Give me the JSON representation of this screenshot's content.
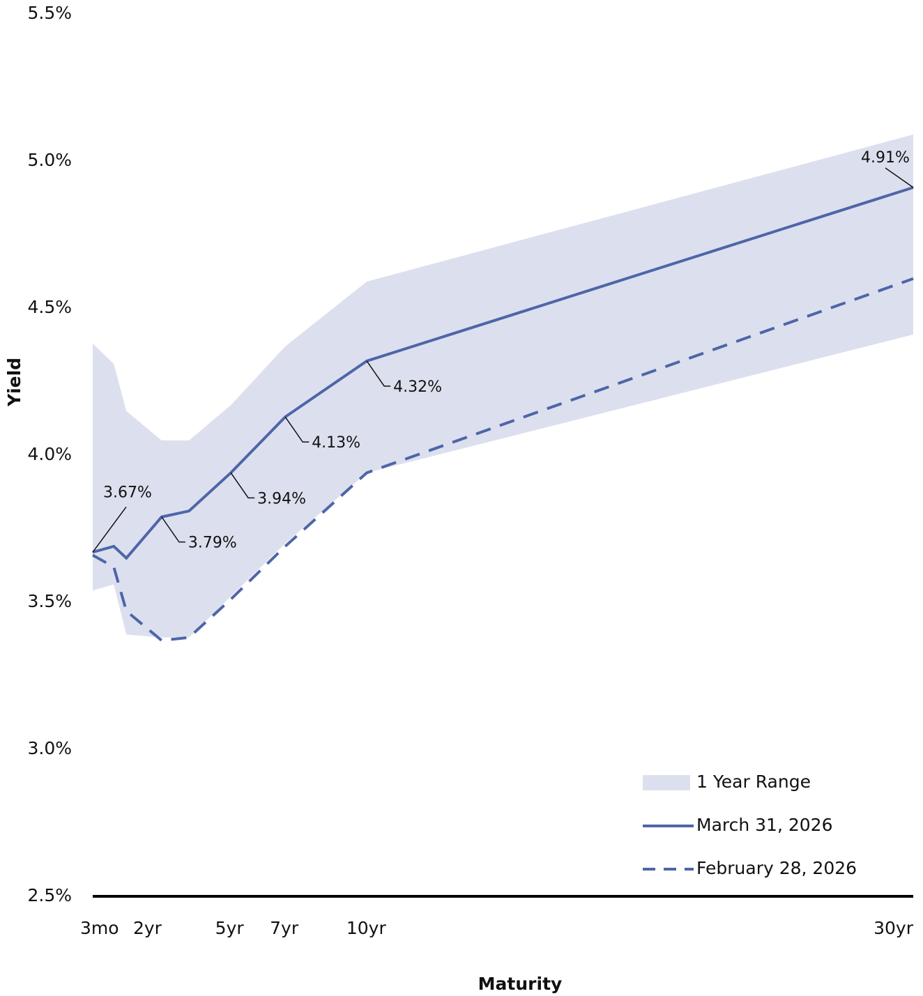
{
  "chart_data": {
    "type": "line",
    "x": [
      0,
      0.77,
      1.23,
      2.52,
      3.52,
      5.05,
      7.04,
      10.02,
      30
    ],
    "xlim": [
      0,
      30
    ],
    "xticks": [
      {
        "value": 0.25,
        "label": "3mo"
      },
      {
        "value": 2,
        "label": "2yr"
      },
      {
        "value": 5,
        "label": "5yr"
      },
      {
        "value": 7,
        "label": "7yr"
      },
      {
        "value": 10,
        "label": "10yr"
      },
      {
        "value": 30,
        "label": "30yr"
      }
    ],
    "ylim": [
      2.5,
      5.5
    ],
    "yticks": [
      {
        "value": 2.5,
        "label": "2.5%"
      },
      {
        "value": 3.0,
        "label": "3.0%"
      },
      {
        "value": 3.5,
        "label": "3.5%"
      },
      {
        "value": 4.0,
        "label": "4.0%"
      },
      {
        "value": 4.5,
        "label": "4.5%"
      },
      {
        "value": 5.0,
        "label": "5.0%"
      },
      {
        "value": 5.5,
        "label": "5.5%"
      }
    ],
    "xlabel": "Maturity",
    "ylabel": "Yield",
    "range": {
      "name": "1 Year Range",
      "color": "#dce0ee",
      "upper": [
        4.38,
        4.31,
        4.15,
        4.05,
        4.05,
        4.17,
        4.37,
        4.59,
        5.09
      ],
      "lower": [
        3.54,
        3.56,
        3.39,
        3.38,
        3.38,
        3.52,
        3.7,
        3.94,
        4.41
      ]
    },
    "series": [
      {
        "name": "March 31, 2026",
        "color": "#4e65a8",
        "dash": false,
        "values": [
          3.67,
          3.69,
          3.65,
          3.79,
          3.81,
          3.94,
          4.13,
          4.32,
          4.91
        ],
        "value_labels": [
          "3.67%",
          null,
          null,
          "3.79%",
          null,
          "3.94%",
          "4.13%",
          "4.32%",
          "4.91%"
        ]
      },
      {
        "name": "February 28, 2026",
        "color": "#4e65a8",
        "dash": true,
        "values": [
          3.66,
          3.62,
          3.47,
          3.37,
          3.38,
          3.51,
          3.69,
          3.94,
          4.6
        ]
      }
    ],
    "grid": false
  }
}
